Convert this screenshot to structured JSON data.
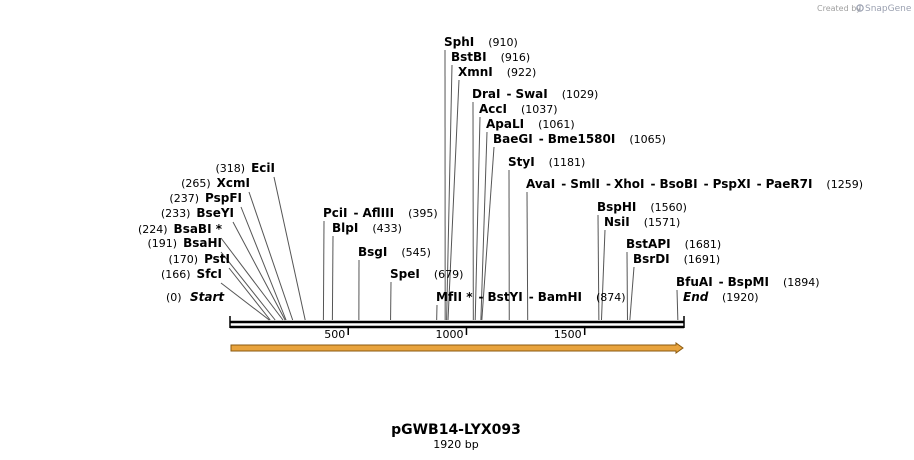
{
  "credit": {
    "prefix": "Created by",
    "brand": "SnapGene"
  },
  "plasmid": {
    "name": "pGWB14-LYX093",
    "size_label": "1920 bp"
  },
  "ruler": {
    "length": 1920,
    "ticks": [
      500,
      1000,
      1500
    ]
  },
  "feature": {
    "name": "",
    "color": "#e8a33d"
  },
  "ends": {
    "start": {
      "label": "Start",
      "pos_label": "(0)"
    },
    "end": {
      "label": "End",
      "pos_label": "(1920)"
    }
  },
  "sites": [
    {
      "names": [
        "SfcI"
      ],
      "pos_label": "(166)",
      "pos": 166
    },
    {
      "names": [
        "PstI"
      ],
      "pos_label": "(170)",
      "pos": 170
    },
    {
      "names": [
        "BsaHI"
      ],
      "pos_label": "(191)",
      "pos": 191
    },
    {
      "names": [
        "BsaBI *"
      ],
      "pos_label": "(224)",
      "pos": 224
    },
    {
      "names": [
        "BseYI"
      ],
      "pos_label": "(233)",
      "pos": 233
    },
    {
      "names": [
        "PspFI"
      ],
      "pos_label": "(237)",
      "pos": 237
    },
    {
      "names": [
        "XcmI"
      ],
      "pos_label": "(265)",
      "pos": 265
    },
    {
      "names": [
        "EciI"
      ],
      "pos_label": "(318)",
      "pos": 318
    },
    {
      "names": [
        "PciI",
        "AflIII"
      ],
      "pos_label": "(395)",
      "pos": 395
    },
    {
      "names": [
        "BlpI"
      ],
      "pos_label": "(433)",
      "pos": 433
    },
    {
      "names": [
        "BsgI"
      ],
      "pos_label": "(545)",
      "pos": 545
    },
    {
      "names": [
        "SpeI"
      ],
      "pos_label": "(679)",
      "pos": 679
    },
    {
      "names": [
        "MfII *",
        "BstYI",
        "BamHI"
      ],
      "pos_label": "(874)",
      "pos": 874
    },
    {
      "names": [
        "SphI"
      ],
      "pos_label": "(910)",
      "pos": 910
    },
    {
      "names": [
        "BstBI"
      ],
      "pos_label": "(916)",
      "pos": 916
    },
    {
      "names": [
        "XmnI"
      ],
      "pos_label": "(922)",
      "pos": 922
    },
    {
      "names": [
        "DraI",
        "SwaI"
      ],
      "pos_label": "(1029)",
      "pos": 1029
    },
    {
      "names": [
        "AccI"
      ],
      "pos_label": "(1037)",
      "pos": 1037
    },
    {
      "names": [
        "ApaLI"
      ],
      "pos_label": "(1061)",
      "pos": 1061
    },
    {
      "names": [
        "BaeGI",
        "Bme1580I"
      ],
      "pos_label": "(1065)",
      "pos": 1065
    },
    {
      "names": [
        "StyI"
      ],
      "pos_label": "(1181)",
      "pos": 1181
    },
    {
      "names": [
        "AvaI",
        "SmlI",
        "XhoI",
        "BsoBI",
        "PspXI",
        "PaeR7I"
      ],
      "pos_label": "(1259)",
      "pos": 1259
    },
    {
      "names": [
        "BspHI"
      ],
      "pos_label": "(1560)",
      "pos": 1560
    },
    {
      "names": [
        "NsiI"
      ],
      "pos_label": "(1571)",
      "pos": 1571
    },
    {
      "names": [
        "BstAPI"
      ],
      "pos_label": "(1681)",
      "pos": 1681
    },
    {
      "names": [
        "BsrDI"
      ],
      "pos_label": "(1691)",
      "pos": 1691
    },
    {
      "names": [
        "BfuAI",
        "BspMI"
      ],
      "pos_label": "(1894)",
      "pos": 1894
    }
  ]
}
